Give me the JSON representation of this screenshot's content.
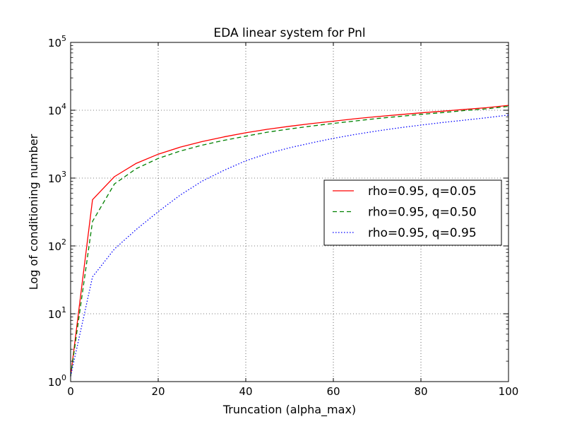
{
  "chart_data": {
    "type": "line",
    "title": "EDA linear system for Pnl",
    "xlabel": "Truncation (alpha_max)",
    "ylabel": "Log of conditioning number",
    "xlim": [
      0,
      100
    ],
    "ylim": [
      1,
      100000
    ],
    "yscale": "log",
    "grid": true,
    "legend_position": "center-right",
    "x_ticks": [
      "0",
      "20",
      "40",
      "60",
      "80",
      "100"
    ],
    "y_ticks": [
      {
        "base": "10",
        "exp": "0"
      },
      {
        "base": "10",
        "exp": "1"
      },
      {
        "base": "10",
        "exp": "2"
      },
      {
        "base": "10",
        "exp": "3"
      },
      {
        "base": "10",
        "exp": "4"
      },
      {
        "base": "10",
        "exp": "5"
      }
    ],
    "x": [
      0,
      5,
      10,
      15,
      20,
      25,
      30,
      35,
      40,
      45,
      50,
      55,
      60,
      65,
      70,
      75,
      80,
      85,
      90,
      95,
      100
    ],
    "series": [
      {
        "name": "rho=0.95, q=0.05",
        "color": "#ff0000",
        "style": "solid",
        "values": [
          1.2,
          480,
          1050,
          1650,
          2250,
          2850,
          3450,
          4050,
          4650,
          5250,
          5800,
          6350,
          6900,
          7500,
          8050,
          8600,
          9150,
          9700,
          10300,
          10900,
          11800
        ]
      },
      {
        "name": "rho=0.95, q=0.50",
        "color": "#008000",
        "style": "dashed",
        "values": [
          1.2,
          230,
          820,
          1380,
          1950,
          2500,
          3050,
          3600,
          4150,
          4750,
          5300,
          5850,
          6400,
          6950,
          7550,
          8100,
          8700,
          9250,
          9900,
          10500,
          11400
        ]
      },
      {
        "name": "rho=0.95, q=0.95",
        "color": "#0000ff",
        "style": "dotted",
        "values": [
          1.2,
          35,
          90,
          175,
          320,
          560,
          900,
          1300,
          1800,
          2300,
          2800,
          3300,
          3850,
          4400,
          4950,
          5500,
          6050,
          6600,
          7150,
          7750,
          8500
        ]
      }
    ]
  }
}
